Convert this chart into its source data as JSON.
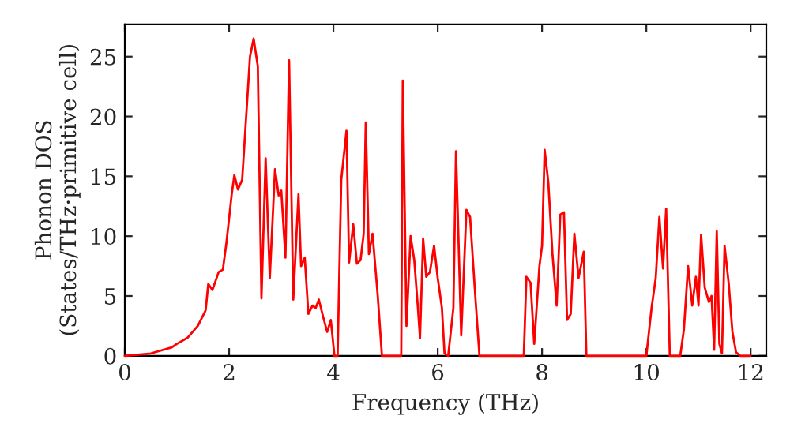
{
  "chart_data": {
    "type": "line",
    "xlabel": "Frequency (THz)",
    "ylabel": "Phonon DOS\n(States/THz·primitive cell)",
    "x": [
      0,
      0.5,
      0.9,
      1.0,
      1.2,
      1.4,
      1.55,
      1.6,
      1.68,
      1.8,
      1.88,
      1.95,
      2.05,
      2.1,
      2.17,
      2.25,
      2.4,
      2.47,
      2.55,
      2.62,
      2.7,
      2.78,
      2.88,
      2.95,
      3.0,
      3.08,
      3.15,
      3.23,
      3.33,
      3.38,
      3.45,
      3.52,
      3.6,
      3.66,
      3.72,
      3.8,
      3.88,
      3.95,
      4.02,
      4.08,
      4.15,
      4.25,
      4.3,
      4.38,
      4.45,
      4.52,
      4.58,
      4.62,
      4.68,
      4.75,
      4.85,
      4.93,
      5.3,
      5.33,
      5.4,
      5.48,
      5.55,
      5.62,
      5.66,
      5.72,
      5.78,
      5.85,
      5.93,
      6.0,
      6.08,
      6.13,
      6.2,
      6.3,
      6.35,
      6.45,
      6.55,
      6.62,
      6.72,
      6.8,
      7.65,
      7.7,
      7.78,
      7.85,
      7.95,
      8.0,
      8.05,
      8.12,
      8.2,
      8.28,
      8.35,
      8.42,
      8.48,
      8.55,
      8.62,
      8.7,
      8.8,
      8.85,
      10.0,
      10.1,
      10.18,
      10.25,
      10.32,
      10.38,
      10.45,
      10.65,
      10.72,
      10.8,
      10.88,
      10.95,
      11.0,
      11.05,
      11.12,
      11.2,
      11.25,
      11.3,
      11.35,
      11.4,
      11.45,
      11.5,
      11.58,
      11.65,
      11.72,
      11.8,
      12.0
    ],
    "series": [
      {
        "color": "#ff0000",
        "values": [
          0,
          0.2,
          0.7,
          1.0,
          1.5,
          2.5,
          3.8,
          6.0,
          5.5,
          7.0,
          7.2,
          9.5,
          13.5,
          15.1,
          13.9,
          14.7,
          25,
          26.5,
          24.2,
          4.8,
          16.5,
          6.5,
          15.6,
          13.4,
          13.8,
          8.2,
          24.7,
          4.7,
          13.5,
          7.5,
          8.2,
          3.5,
          4.2,
          4.0,
          4.7,
          3.3,
          2.0,
          3.0,
          0,
          0,
          14.7,
          18.8,
          7.8,
          11,
          7.7,
          8,
          10.2,
          19.5,
          8.5,
          10.2,
          5,
          0,
          0,
          23,
          2.5,
          10,
          8,
          4,
          1.5,
          9.8,
          6.6,
          7,
          9.2,
          6.5,
          4,
          0.2,
          0,
          4,
          17.1,
          1.7,
          12.2,
          11.6,
          5,
          0,
          0,
          6.6,
          6.1,
          1,
          7.5,
          9.2,
          17.2,
          14.5,
          8.5,
          4.2,
          11.8,
          12,
          3,
          3.5,
          10.2,
          6.5,
          8.7,
          0,
          0,
          4,
          6.5,
          11.6,
          7.3,
          12.3,
          0,
          0,
          2.2,
          7.5,
          4.2,
          6.6,
          4.2,
          10.1,
          5.7,
          4.5,
          5,
          0.5,
          10.4,
          1,
          0.2,
          9.2,
          6,
          2,
          0.3,
          0,
          0
        ]
      }
    ],
    "xlim": [
      0,
      12.3
    ],
    "ylim": [
      0,
      27.7
    ],
    "xticks": [
      0,
      2,
      4,
      6,
      8,
      10,
      12
    ],
    "yticks": [
      0,
      5,
      10,
      15,
      20,
      25
    ],
    "grid": false,
    "legend": false,
    "marker": "none",
    "line_style": "solid"
  }
}
